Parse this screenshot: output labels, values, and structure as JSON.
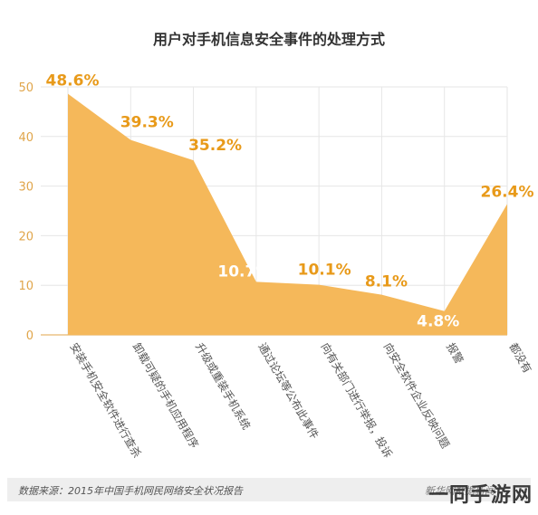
{
  "chart_data": {
    "type": "area",
    "title": "用户对手机信息安全事件的处理方式",
    "categories": [
      "安装手机安全软件进行查杀",
      "卸载可疑的手机应用程序",
      "升级或重装手机系统",
      "通过论坛等公布此事件",
      "向有关部门进行举报，投诉",
      "向安全软件企业反映问题",
      "报警",
      "都没有"
    ],
    "values": [
      48.6,
      39.3,
      35.2,
      10.7,
      10.1,
      8.1,
      4.8,
      26.4
    ],
    "value_labels": [
      "48.6%",
      "39.3%",
      "35.2%",
      "10.7%",
      "10.1%",
      "8.1%",
      "4.8%",
      "26.4%"
    ],
    "yticks": [
      "0",
      "10",
      "20",
      "30",
      "40",
      "50"
    ],
    "ylim": [
      0,
      50
    ],
    "grid": true,
    "fill_color": "#f5b85a",
    "label_color": "#e89a1a",
    "inner_label_color": "#ffffff",
    "axis_color": "#e0a54a"
  },
  "footer": {
    "source": "数据来源：2015年中国手机网民网络安全状况报告",
    "brand": "新华网数据新闻"
  },
  "watermark": "一同手游网"
}
